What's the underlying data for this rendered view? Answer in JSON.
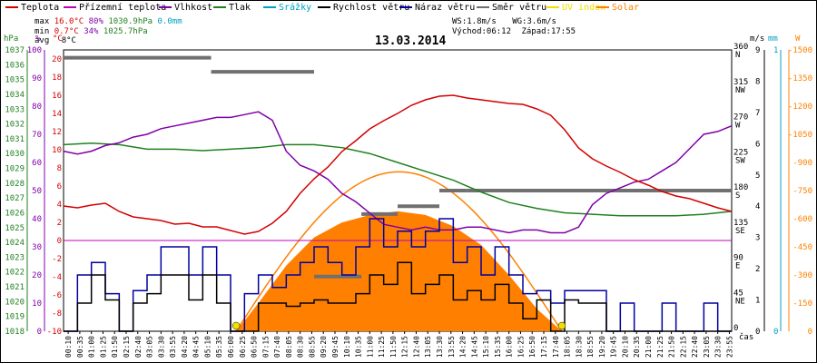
{
  "legend": [
    {
      "label": "Teplota",
      "color": "#d40000"
    },
    {
      "label": "Přízemní teplota",
      "color": "#c000c0"
    },
    {
      "label": "Vlhkost",
      "color": "#8000a8"
    },
    {
      "label": "Tlak",
      "color": "#208020"
    },
    {
      "label": "Srážky",
      "color": "#00a0c0"
    },
    {
      "label": "Rychlost větru",
      "color": "#000000"
    },
    {
      "label": "Náraz větru",
      "color": "#0000a0"
    },
    {
      "label": "Směr větru",
      "color": "#707070"
    },
    {
      "label": "UV index",
      "color": "#f0e000"
    },
    {
      "label": "Solar",
      "color": "#ff8000"
    }
  ],
  "stats": {
    "max_label": "max",
    "max_temp": "16.0°C",
    "max_hum": "80%",
    "max_press": "1030.9hPa",
    "max_rain": "0.0mm",
    "min_label": "min",
    "min_temp": "0.7°C",
    "min_hum": "34%",
    "min_press": "1025.7hPa",
    "avg_label": "avg",
    "avg_temp": "8°C",
    "ws": "WS:1.8m/s",
    "wg": "WG:3.6m/s",
    "sunrise": "Východ:06:12",
    "sunset": "Západ:17:55"
  },
  "date": "13.03.2014",
  "units": {
    "hpa": "hPa",
    "pct": "%",
    "degc": "°C",
    "ms": "m/s",
    "mm": "mm",
    "w": "W",
    "time": "čas"
  },
  "colors": {
    "temp": "#d40000",
    "humidity": "#8000a8",
    "pressure": "#208020",
    "wind": "#000000",
    "gust": "#0000a0",
    "dir": "#707070",
    "solar": "#ff8000",
    "uv": "#f0e000",
    "rain": "#00a0c0",
    "hpa_axis": "#208020",
    "pct_axis": "#8000a8",
    "deg_axis": "#d40000",
    "mm_axis": "#00a0c0",
    "w_axis": "#ff8000"
  },
  "chart_data": {
    "type": "line",
    "title": "13.03.2014",
    "x_range": [
      "00:00",
      "24:00"
    ],
    "x_ticks": [
      "00:10",
      "00:35",
      "01:00",
      "01:25",
      "01:50",
      "02:15",
      "02:40",
      "03:05",
      "03:30",
      "03:55",
      "04:20",
      "04:45",
      "05:10",
      "05:35",
      "06:00",
      "06:25",
      "06:50",
      "07:15",
      "07:40",
      "08:05",
      "08:30",
      "08:55",
      "09:20",
      "09:45",
      "10:10",
      "10:35",
      "11:00",
      "11:25",
      "11:50",
      "12:15",
      "12:40",
      "13:05",
      "13:30",
      "13:55",
      "14:20",
      "14:45",
      "15:10",
      "15:35",
      "16:00",
      "16:25",
      "16:50",
      "17:15",
      "17:40",
      "18:05",
      "18:30",
      "18:55",
      "19:20",
      "19:45",
      "20:10",
      "20:35",
      "21:00",
      "21:25",
      "21:50",
      "22:15",
      "22:40",
      "23:05",
      "23:30",
      "23:55"
    ],
    "axes": {
      "pressure_hpa": {
        "range": [
          1018,
          1037
        ],
        "ticks": [
          1037,
          1036,
          1035,
          1034,
          1033,
          1032,
          1031,
          1030,
          1029,
          1028,
          1027,
          1026,
          1025,
          1024,
          1023,
          1022,
          1021,
          1020,
          1019,
          1018
        ]
      },
      "humidity_pct": {
        "range": [
          0,
          100
        ],
        "ticks": [
          100,
          90,
          80,
          70,
          60,
          50,
          40,
          30,
          20,
          10,
          0
        ]
      },
      "temp_c": {
        "range": [
          -10,
          21
        ],
        "ticks": [
          20,
          18,
          16,
          14,
          12,
          10,
          8,
          6,
          4,
          2,
          0,
          -2,
          -4,
          -6,
          -8,
          -10
        ]
      },
      "direction_deg": {
        "range": [
          0,
          360
        ],
        "ticks": [
          "360 N",
          "315 NW",
          "270 W",
          "225 SW",
          "180 S",
          "135 SE",
          "90 E",
          "45 NE",
          "0"
        ]
      },
      "wind_ms": {
        "range": [
          0,
          9
        ],
        "ticks": [
          9,
          8,
          7,
          6,
          5,
          4,
          3,
          2,
          1,
          0
        ]
      },
      "rain_mm": {
        "range": [
          0,
          1
        ],
        "ticks": [
          1,
          0
        ]
      },
      "solar_w": {
        "range": [
          0,
          1500
        ],
        "ticks": [
          1500,
          1350,
          1200,
          1050,
          900,
          750,
          600,
          450,
          300,
          150,
          0
        ]
      }
    },
    "series": [
      {
        "name": "Teplota",
        "axis": "temp_c",
        "x": [
          0,
          0.5,
          1,
          1.5,
          2,
          2.5,
          3,
          3.5,
          4,
          4.5,
          5,
          5.5,
          6,
          6.5,
          7,
          7.5,
          8,
          8.5,
          9,
          9.5,
          10,
          10.5,
          11,
          11.5,
          12,
          12.5,
          13,
          13.5,
          14,
          14.5,
          15,
          15.5,
          16,
          16.5,
          17,
          17.5,
          18,
          18.5,
          19,
          19.5,
          20,
          20.5,
          21,
          21.5,
          22,
          22.5,
          23,
          23.5,
          24
        ],
        "values": [
          3.8,
          3.6,
          3.9,
          4.1,
          3.2,
          2.6,
          2.4,
          2.2,
          1.8,
          1.9,
          1.5,
          1.5,
          1.1,
          0.7,
          1.0,
          1.9,
          3.2,
          5.2,
          6.8,
          8.1,
          9.8,
          11.0,
          12.3,
          13.2,
          14.0,
          14.9,
          15.5,
          15.9,
          16.0,
          15.7,
          15.5,
          15.3,
          15.1,
          15.0,
          14.5,
          13.8,
          12.2,
          10.2,
          9.0,
          8.2,
          7.5,
          6.7,
          6.1,
          5.4,
          4.9,
          4.6,
          4.1,
          3.6,
          3.2
        ]
      },
      {
        "name": "Vlhkost",
        "axis": "humidity_pct",
        "x": [
          0,
          0.5,
          1,
          1.5,
          2,
          2.5,
          3,
          3.5,
          4,
          4.5,
          5,
          5.5,
          6,
          6.5,
          7,
          7.5,
          8,
          8.5,
          9,
          9.5,
          10,
          10.5,
          11,
          11.5,
          12,
          12.5,
          13,
          13.5,
          14,
          14.5,
          15,
          15.5,
          16,
          16.5,
          17,
          17.5,
          18,
          18.5,
          19,
          19.5,
          20,
          20.5,
          21,
          21.5,
          22,
          22.5,
          23,
          23.5,
          24
        ],
        "values": [
          64,
          63,
          64,
          66,
          67,
          69,
          70,
          72,
          73,
          74,
          75,
          76,
          76,
          77,
          78,
          75,
          64,
          59,
          57,
          54,
          49,
          46,
          42,
          38,
          37,
          36,
          37,
          36,
          36,
          37,
          37,
          36,
          35,
          36,
          36,
          35,
          35,
          37,
          45,
          49,
          51,
          53,
          54,
          57,
          60,
          65,
          70,
          71,
          73
        ]
      },
      {
        "name": "Tlak",
        "axis": "pressure_hpa",
        "x": [
          0,
          1,
          2,
          3,
          4,
          5,
          6,
          7,
          8,
          9,
          10,
          11,
          12,
          13,
          14,
          15,
          16,
          17,
          18,
          19,
          20,
          21,
          22,
          23,
          24
        ],
        "values": [
          1030.6,
          1030.7,
          1030.6,
          1030.3,
          1030.3,
          1030.2,
          1030.3,
          1030.4,
          1030.6,
          1030.6,
          1030.4,
          1030.0,
          1029.4,
          1028.8,
          1028.2,
          1027.4,
          1026.7,
          1026.3,
          1026.0,
          1025.9,
          1025.8,
          1025.8,
          1025.8,
          1025.9,
          1026.1
        ]
      },
      {
        "name": "Rychlost větru",
        "axis": "wind_ms",
        "x": [
          0,
          0.5,
          1,
          1.5,
          2,
          2.5,
          3,
          3.5,
          4,
          4.5,
          5,
          5.5,
          6,
          6.5,
          7,
          7.5,
          8,
          8.5,
          9,
          9.5,
          10,
          10.5,
          11,
          11.5,
          12,
          12.5,
          13,
          13.5,
          14,
          14.5,
          15,
          15.5,
          16,
          16.5,
          17,
          17.5,
          18,
          18.5,
          19,
          19.5,
          20,
          20.5,
          21,
          21.5,
          22,
          22.5,
          23,
          23.5,
          24
        ],
        "values": [
          0,
          0.9,
          1.8,
          1.0,
          0,
          0.9,
          1.2,
          1.8,
          1.8,
          1.0,
          1.8,
          0.9,
          0,
          0,
          0.9,
          0.9,
          0.8,
          0.9,
          1.0,
          0.9,
          0.9,
          1.2,
          1.8,
          1.5,
          2.2,
          1.2,
          1.5,
          1.8,
          1.0,
          1.3,
          1.0,
          1.5,
          0.9,
          0.4,
          1.0,
          0,
          1.0,
          0.9,
          0.9,
          0,
          0,
          0,
          0,
          0,
          0,
          0,
          0,
          0,
          0
        ]
      },
      {
        "name": "Náraz větru",
        "axis": "wind_ms",
        "x": [
          0,
          0.5,
          1,
          1.5,
          2,
          2.5,
          3,
          3.5,
          4,
          4.5,
          5,
          5.5,
          6,
          6.5,
          7,
          7.5,
          8,
          8.5,
          9,
          9.5,
          10,
          10.5,
          11,
          11.5,
          12,
          12.5,
          13,
          13.5,
          14,
          14.5,
          15,
          15.5,
          16,
          16.5,
          17,
          17.5,
          18,
          18.5,
          19,
          19.5,
          20,
          20.5,
          21,
          21.5,
          22,
          22.5,
          23,
          23.5,
          24
        ],
        "values": [
          0,
          1.8,
          2.2,
          1.2,
          0,
          1.3,
          1.8,
          2.7,
          2.7,
          1.8,
          2.7,
          1.8,
          0,
          1.2,
          1.8,
          1.4,
          1.8,
          2.2,
          2.7,
          2.2,
          1.8,
          2.7,
          3.6,
          2.7,
          3.2,
          2.7,
          3.2,
          3.6,
          2.2,
          2.7,
          1.8,
          2.7,
          1.8,
          1.2,
          1.3,
          0.9,
          1.3,
          1.3,
          1.3,
          0,
          0.9,
          0,
          0,
          0.9,
          0,
          0,
          0.9,
          0,
          0
        ]
      },
      {
        "name": "Směr větru",
        "axis": "direction_deg",
        "segments": [
          [
            0,
            5.3,
            350
          ],
          [
            5.3,
            9.0,
            332
          ],
          [
            9.0,
            10.7,
            70
          ],
          [
            10.7,
            12.0,
            150
          ],
          [
            12.0,
            13.5,
            160
          ],
          [
            13.5,
            14.5,
            180
          ],
          [
            14.5,
            24.0,
            180
          ]
        ]
      },
      {
        "name": "Solar",
        "axis": "solar_w",
        "x": [
          6.2,
          7,
          8,
          9,
          10,
          11,
          12,
          13,
          14,
          15,
          16,
          17,
          17.9
        ],
        "values": [
          0,
          150,
          350,
          500,
          580,
          620,
          640,
          620,
          560,
          460,
          300,
          120,
          0
        ]
      },
      {
        "name": "UV index",
        "axis": "solar_w",
        "x": [
          6.2,
          18.0
        ],
        "values": [
          0,
          0
        ]
      }
    ]
  }
}
